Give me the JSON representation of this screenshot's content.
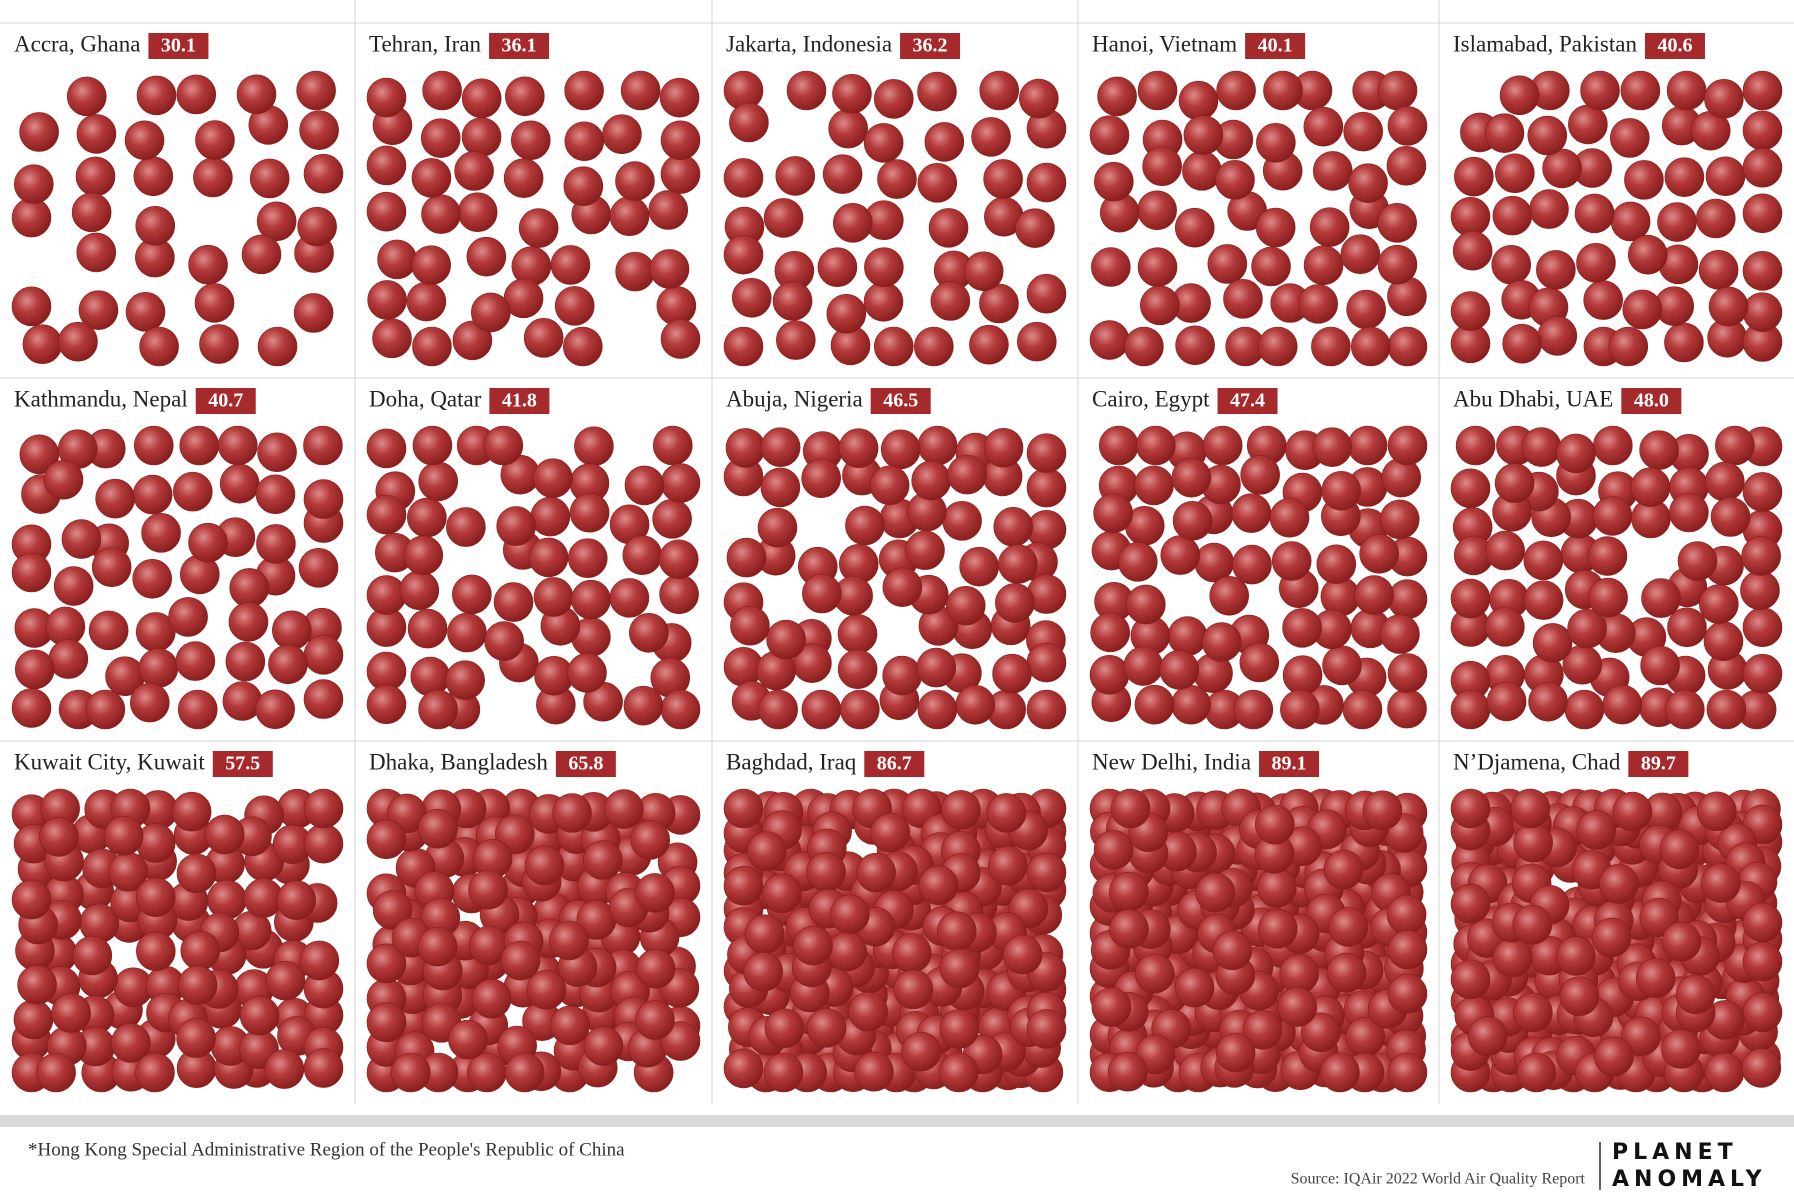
{
  "chart_data": {
    "type": "dots",
    "categories": [
      "Accra, Ghana",
      "Tehran, Iran",
      "Jakarta, Indonesia",
      "Hanoi, Vietnam",
      "Islamabad, Pakistan",
      "Kathmandu, Nepal",
      "Doha, Qatar",
      "Abuja, Nigeria",
      "Cairo, Egypt",
      "Abu Dhabi, UAE",
      "Kuwait City, Kuwait",
      "Dhaka, Bangladesh",
      "Baghdad, Iraq",
      "New Delhi, India",
      "N’Djamena, Chad"
    ],
    "values": [
      30.1,
      36.1,
      36.2,
      40.1,
      40.6,
      40.7,
      41.8,
      46.5,
      47.4,
      48.0,
      57.5,
      65.8,
      86.7,
      89.1,
      89.7
    ],
    "value_labels": [
      "30.1",
      "36.1",
      "36.2",
      "40.1",
      "40.6",
      "40.7",
      "41.8",
      "46.5",
      "47.4",
      "48.0",
      "57.5",
      "65.8",
      "86.7",
      "89.1",
      "89.7"
    ],
    "color": "#a62a2c",
    "footnote": "*Hong Kong Special Administrative Region of the People's Republic of China",
    "source": "Source: IQAir 2022 World Air Quality Report"
  },
  "branding": {
    "line1": "PLANET",
    "line2": "ANOMALY"
  }
}
